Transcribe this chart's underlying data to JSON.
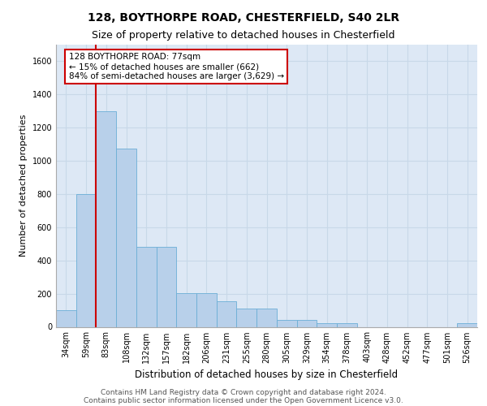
{
  "title1": "128, BOYTHORPE ROAD, CHESTERFIELD, S40 2LR",
  "title2": "Size of property relative to detached houses in Chesterfield",
  "xlabel": "Distribution of detached houses by size in Chesterfield",
  "ylabel": "Number of detached properties",
  "categories": [
    "34sqm",
    "59sqm",
    "83sqm",
    "108sqm",
    "132sqm",
    "157sqm",
    "182sqm",
    "206sqm",
    "231sqm",
    "255sqm",
    "280sqm",
    "305sqm",
    "329sqm",
    "354sqm",
    "378sqm",
    "403sqm",
    "428sqm",
    "452sqm",
    "477sqm",
    "501sqm",
    "526sqm"
  ],
  "values": [
    100,
    800,
    1300,
    1075,
    480,
    480,
    205,
    205,
    155,
    110,
    110,
    40,
    40,
    20,
    20,
    0,
    0,
    0,
    0,
    0,
    20
  ],
  "bar_color": "#b8d0ea",
  "bar_edge_color": "#6baed6",
  "grid_color": "#c8d8e8",
  "background_color": "#dde8f5",
  "annotation_box_text": "128 BOYTHORPE ROAD: 77sqm\n← 15% of detached houses are smaller (662)\n84% of semi-detached houses are larger (3,629) →",
  "annotation_box_color": "#ffffff",
  "annotation_box_edge_color": "#cc0000",
  "vline_color": "#cc0000",
  "vline_x": 1.5,
  "ylim": [
    0,
    1700
  ],
  "yticks": [
    0,
    200,
    400,
    600,
    800,
    1000,
    1200,
    1400,
    1600
  ],
  "footer1": "Contains HM Land Registry data © Crown copyright and database right 2024.",
  "footer2": "Contains public sector information licensed under the Open Government Licence v3.0.",
  "title_fontsize": 10,
  "subtitle_fontsize": 9,
  "tick_fontsize": 7,
  "ylabel_fontsize": 8,
  "xlabel_fontsize": 8.5,
  "footer_fontsize": 6.5,
  "ann_fontsize": 7.5
}
